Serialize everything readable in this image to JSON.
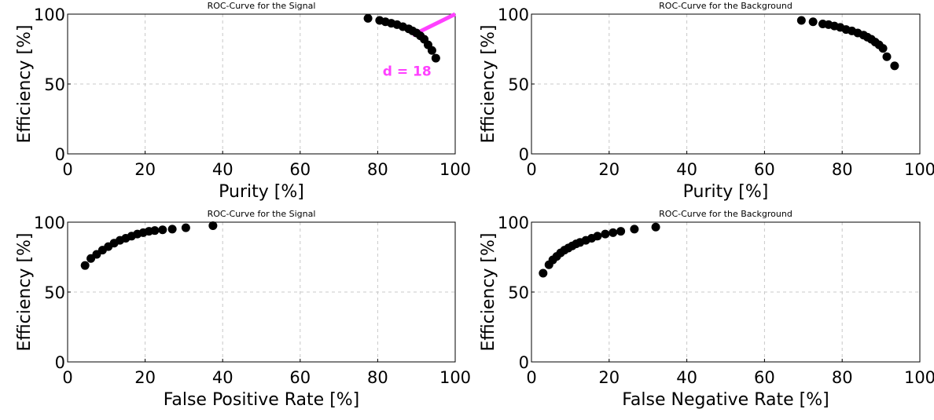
{
  "chart_data": [
    {
      "type": "scatter",
      "title": "ROC-Curve for the Signal",
      "xlabel": "Purity [%]",
      "ylabel": "Efficiency [%]",
      "xlim": [
        0,
        100
      ],
      "ylim": [
        0,
        100
      ],
      "xticks": [
        "0",
        "20",
        "40",
        "60",
        "80",
        "100"
      ],
      "yticks": [
        "0",
        "50",
        "100"
      ],
      "grid": true,
      "points": [
        [
          77.5,
          97
        ],
        [
          80.5,
          95.5
        ],
        [
          82,
          94.5
        ],
        [
          83.5,
          93.5
        ],
        [
          85,
          92.5
        ],
        [
          86.5,
          91
        ],
        [
          88,
          89.5
        ],
        [
          89,
          88
        ],
        [
          90,
          86.5
        ],
        [
          91,
          84.5
        ],
        [
          92,
          82
        ],
        [
          93,
          78
        ],
        [
          94,
          74
        ],
        [
          95,
          68.5
        ]
      ],
      "annotation": {
        "text": "d = 18",
        "color": "#ff40ff",
        "x1": 89,
        "y1": 85,
        "x2": 100,
        "y2": 100
      }
    },
    {
      "type": "scatter",
      "title": "ROC-Curve for the Background",
      "xlabel": "Purity [%]",
      "ylabel": "Efficiency [%]",
      "xlim": [
        0,
        100
      ],
      "ylim": [
        0,
        100
      ],
      "xticks": [
        "0",
        "20",
        "40",
        "60",
        "80",
        "100"
      ],
      "yticks": [
        "0",
        "50",
        "100"
      ],
      "grid": true,
      "points": [
        [
          69.5,
          95.5
        ],
        [
          72.5,
          94.5
        ],
        [
          75,
          93
        ],
        [
          76.5,
          92.5
        ],
        [
          78,
          91.5
        ],
        [
          79.5,
          90.5
        ],
        [
          81,
          89
        ],
        [
          82.5,
          88
        ],
        [
          84,
          86.5
        ],
        [
          85.5,
          85
        ],
        [
          86.5,
          83.5
        ],
        [
          87.5,
          82
        ],
        [
          88.5,
          80
        ],
        [
          89.5,
          78
        ],
        [
          90.5,
          75.5
        ],
        [
          91.5,
          69.5
        ],
        [
          93.5,
          63
        ]
      ]
    },
    {
      "type": "scatter",
      "title": "ROC-Curve for the Signal",
      "xlabel": "False Positive Rate [%]",
      "ylabel": "Efficiency [%]",
      "xlim": [
        0,
        100
      ],
      "ylim": [
        0,
        100
      ],
      "xticks": [
        "0",
        "20",
        "40",
        "60",
        "80",
        "100"
      ],
      "yticks": [
        "0",
        "50",
        "100"
      ],
      "grid": true,
      "points": [
        [
          4.5,
          69
        ],
        [
          6,
          74
        ],
        [
          7.5,
          77
        ],
        [
          9,
          80
        ],
        [
          10.5,
          82.5
        ],
        [
          12,
          85
        ],
        [
          13.5,
          87
        ],
        [
          15,
          88.5
        ],
        [
          16.5,
          90
        ],
        [
          18,
          91.5
        ],
        [
          19.5,
          92.5
        ],
        [
          21,
          93.5
        ],
        [
          22.5,
          94
        ],
        [
          24.5,
          94.5
        ],
        [
          27,
          95
        ],
        [
          30.5,
          96
        ],
        [
          37.5,
          97.5
        ]
      ]
    },
    {
      "type": "scatter",
      "title": "ROC-Curve for the Background",
      "xlabel": "False Negative Rate [%]",
      "ylabel": "Efficiency [%]",
      "xlim": [
        0,
        100
      ],
      "ylim": [
        0,
        100
      ],
      "xticks": [
        "0",
        "20",
        "40",
        "60",
        "80",
        "100"
      ],
      "yticks": [
        "0",
        "50",
        "100"
      ],
      "grid": true,
      "points": [
        [
          3,
          63.5
        ],
        [
          4.5,
          69.5
        ],
        [
          5.5,
          73
        ],
        [
          6.5,
          75.5
        ],
        [
          7.5,
          78
        ],
        [
          8.5,
          80
        ],
        [
          9.5,
          81.5
        ],
        [
          10.5,
          83
        ],
        [
          11.5,
          84.5
        ],
        [
          12.5,
          85.5
        ],
        [
          14,
          87
        ],
        [
          15.5,
          88.5
        ],
        [
          17,
          90
        ],
        [
          19,
          91.5
        ],
        [
          21,
          92.5
        ],
        [
          23,
          93.5
        ],
        [
          26.5,
          95
        ],
        [
          32,
          96.5
        ]
      ]
    }
  ]
}
